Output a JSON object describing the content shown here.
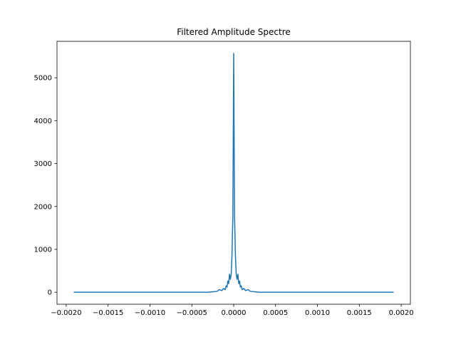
{
  "chart_data": {
    "type": "line",
    "title": "Filtered Amplitude Spectre",
    "xlabel": "",
    "ylabel": "",
    "xlim": [
      -0.00211,
      0.00211
    ],
    "ylim": [
      -280,
      5850
    ],
    "grid": false,
    "xticks": [
      -0.002,
      -0.0015,
      -0.001,
      -0.0005,
      0.0,
      0.0005,
      0.001,
      0.0015,
      0.002
    ],
    "xtick_labels": [
      "−0.0020",
      "−0.0015",
      "−0.0010",
      "−0.0005",
      "0.0000",
      "0.0005",
      "0.0010",
      "0.0015",
      "0.0020"
    ],
    "yticks": [
      0,
      1000,
      2000,
      3000,
      4000,
      5000
    ],
    "ytick_labels": [
      "0",
      "1000",
      "2000",
      "3000",
      "4000",
      "5000"
    ],
    "series": [
      {
        "color": "#1f77b4",
        "x": [
          -0.00191,
          -0.0003,
          -0.00025,
          -0.0002,
          -0.00017,
          -0.00014,
          -0.00012,
          -0.0001,
          -9e-05,
          -8e-05,
          -7e-05,
          -6e-05,
          -5e-05,
          -4e-05,
          -3e-05,
          -2e-05,
          -1e-05,
          0.0,
          1e-05,
          2e-05,
          3e-05,
          4e-05,
          5e-05,
          6e-05,
          7e-05,
          8e-05,
          9e-05,
          0.0001,
          0.00012,
          0.00014,
          0.00017,
          0.0002,
          0.00025,
          0.0003,
          0.00191
        ],
        "y": [
          0,
          0,
          10,
          20,
          60,
          40,
          90,
          60,
          150,
          120,
          260,
          200,
          420,
          300,
          420,
          900,
          1780,
          5570,
          1780,
          900,
          420,
          300,
          420,
          200,
          260,
          120,
          150,
          60,
          90,
          40,
          60,
          20,
          10,
          0,
          0
        ]
      }
    ]
  }
}
